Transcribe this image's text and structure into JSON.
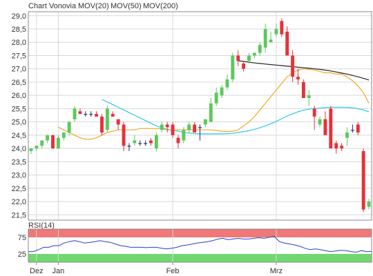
{
  "chart_data": [
    {
      "type": "candlestick",
      "legend": [
        {
          "label": "Chart Vonovia",
          "color": "#e0443c"
        },
        {
          "label": "MOV(20)",
          "color": "#f0a820"
        },
        {
          "label": "MOV(50)",
          "color": "#28c8e8"
        },
        {
          "label": "MOV(200)",
          "color": "#222222"
        }
      ],
      "ylim": [
        21.3,
        29.15
      ],
      "y_ticks": [
        "21,5",
        "22,0",
        "22,5",
        "23,0",
        "23,5",
        "24,0",
        "24,5",
        "25,0",
        "25,5",
        "26,0",
        "26,5",
        "27,0",
        "27,5",
        "28,0",
        "28,5",
        "29,0"
      ],
      "x_ticks": [
        {
          "label": "Dez",
          "index": 1
        },
        {
          "label": "Jan",
          "index": 5
        },
        {
          "label": "Feb",
          "index": 26
        },
        {
          "label": "Mrz",
          "index": 45
        }
      ],
      "up_color": "#5cc85c",
      "down_color": "#e8303a",
      "flat_color": "#2a2a6a",
      "candles": [
        [
          23.9,
          24.0,
          23.8,
          24.0
        ],
        [
          24.0,
          24.1,
          23.9,
          24.1
        ],
        [
          24.1,
          24.3,
          24.0,
          24.3
        ],
        [
          24.3,
          24.5,
          24.2,
          24.5
        ],
        [
          24.5,
          24.5,
          24.0,
          24.0
        ],
        [
          24.0,
          24.5,
          24.0,
          24.4
        ],
        [
          24.4,
          24.6,
          24.3,
          24.6
        ],
        [
          24.6,
          25.0,
          24.5,
          25.0
        ],
        [
          25.1,
          25.6,
          25.0,
          25.5
        ],
        [
          25.4,
          25.5,
          25.3,
          25.3
        ],
        [
          25.3,
          25.4,
          25.2,
          25.3
        ],
        [
          25.3,
          25.4,
          25.2,
          25.3
        ],
        [
          25.3,
          25.4,
          25.2,
          25.2
        ],
        [
          25.2,
          25.3,
          24.5,
          24.6
        ],
        [
          24.7,
          25.6,
          24.6,
          25.5
        ],
        [
          25.3,
          25.4,
          25.2,
          25.2
        ],
        [
          25.1,
          25.1,
          24.7,
          24.9
        ],
        [
          24.9,
          25.0,
          23.9,
          24.1
        ],
        [
          24.1,
          24.2,
          23.9,
          24.1
        ],
        [
          24.2,
          24.5,
          24.1,
          24.3
        ],
        [
          24.2,
          24.3,
          24.1,
          24.2
        ],
        [
          24.2,
          24.3,
          24.1,
          24.2
        ],
        [
          24.3,
          24.4,
          24.1,
          24.2
        ],
        [
          24.0,
          24.6,
          23.9,
          24.5
        ],
        [
          24.7,
          25.0,
          24.6,
          24.9
        ],
        [
          24.9,
          25.0,
          24.6,
          24.8
        ],
        [
          24.9,
          25.0,
          24.4,
          24.5
        ],
        [
          24.4,
          24.5,
          24.0,
          24.2
        ],
        [
          24.3,
          24.8,
          24.2,
          24.7
        ],
        [
          24.7,
          25.0,
          24.6,
          24.9
        ],
        [
          24.9,
          25.0,
          24.6,
          24.6
        ],
        [
          24.8,
          24.9,
          24.3,
          24.8
        ],
        [
          24.9,
          25.1,
          24.8,
          25.1
        ],
        [
          25.0,
          25.9,
          25.0,
          25.7
        ],
        [
          25.7,
          26.3,
          25.6,
          26.1
        ],
        [
          26.0,
          26.4,
          25.9,
          26.3
        ],
        [
          26.3,
          26.8,
          26.2,
          26.6
        ],
        [
          26.6,
          27.6,
          26.5,
          27.5
        ],
        [
          27.5,
          27.7,
          27.1,
          27.3
        ],
        [
          27.2,
          27.3,
          26.9,
          27.0
        ],
        [
          27.3,
          27.6,
          27.2,
          27.5
        ],
        [
          27.5,
          27.6,
          27.4,
          27.6
        ],
        [
          27.6,
          28.0,
          27.5,
          27.9
        ],
        [
          27.8,
          28.7,
          27.6,
          28.5
        ],
        [
          28.0,
          28.4,
          28.0,
          28.1
        ],
        [
          28.3,
          28.7,
          28.2,
          28.5
        ],
        [
          28.8,
          28.9,
          28.2,
          28.3
        ],
        [
          28.4,
          28.6,
          27.5,
          27.5
        ],
        [
          27.5,
          27.7,
          26.5,
          26.7
        ],
        [
          26.7,
          27.0,
          26.4,
          26.6
        ],
        [
          26.5,
          26.6,
          25.9,
          25.9
        ],
        [
          25.9,
          26.2,
          25.6,
          26.0
        ],
        [
          25.5,
          25.6,
          24.7,
          25.2
        ],
        [
          24.9,
          25.2,
          24.8,
          25.1
        ],
        [
          25.1,
          25.4,
          24.5,
          24.5
        ],
        [
          25.5,
          25.6,
          24.0,
          24.0
        ],
        [
          24.2,
          24.3,
          23.8,
          24.0
        ],
        [
          24.1,
          24.2,
          23.9,
          24.0
        ],
        [
          24.4,
          24.8,
          24.1,
          24.6
        ],
        [
          24.7,
          24.9,
          24.6,
          24.7
        ],
        [
          24.9,
          25.0,
          24.5,
          24.6
        ],
        [
          23.9,
          24.0,
          21.6,
          21.7
        ],
        [
          21.8,
          22.1,
          21.7,
          22.0
        ]
      ],
      "mov20": [
        24.8,
        24.7,
        24.6,
        24.5,
        24.4,
        24.35,
        24.35,
        24.4,
        24.5,
        24.6,
        24.65,
        24.7,
        24.7,
        24.7,
        24.7,
        24.75,
        24.75,
        24.75,
        24.75,
        24.75,
        24.7,
        24.7,
        24.7,
        24.7,
        24.7,
        24.7,
        24.7,
        24.7,
        24.7,
        24.68,
        24.65,
        24.64,
        24.65,
        24.7,
        24.85,
        25.0,
        25.2,
        25.45,
        25.7,
        25.95,
        26.2,
        26.45,
        26.7,
        26.85,
        26.95,
        27.0,
        26.98,
        26.95,
        26.9,
        26.85,
        26.85,
        26.8,
        26.8,
        26.7,
        26.55,
        26.35,
        26.1,
        25.7
      ],
      "mov50": [
        25.85,
        25.75,
        25.65,
        25.55,
        25.45,
        25.35,
        25.25,
        25.15,
        25.05,
        24.95,
        24.85,
        24.78,
        24.72,
        24.68,
        24.65,
        24.6,
        24.58,
        24.56,
        24.55,
        24.55,
        24.55,
        24.55,
        24.55,
        24.56,
        24.57,
        24.6,
        24.63,
        24.67,
        24.72,
        24.78,
        24.85,
        24.93,
        25.02,
        25.12,
        25.22,
        25.3,
        25.38,
        25.44,
        25.48,
        25.5,
        25.52,
        25.54,
        25.55,
        25.55,
        25.55,
        25.55,
        25.53,
        25.5,
        25.45,
        25.38
      ],
      "mov200": [
        27.3,
        27.28,
        27.25,
        27.22,
        27.2,
        27.18,
        27.16,
        27.14,
        27.12,
        27.1,
        27.08,
        27.06,
        27.04,
        27.02,
        27.0,
        26.98,
        26.95,
        26.92,
        26.88,
        26.84,
        26.8,
        26.75,
        26.7,
        26.64,
        26.58
      ],
      "rsi": {
        "label": "RSI(14)",
        "ylim": [
          0,
          100
        ],
        "y_ticks": [
          "75",
          "25"
        ],
        "upper_color": "#f07878",
        "lower_color": "#70d870",
        "line_color": "#2a3ad0",
        "values": [
          32,
          32,
          38,
          45,
          45,
          50,
          50,
          58,
          62,
          65,
          62,
          58,
          60,
          62,
          65,
          62,
          60,
          55,
          50,
          48,
          45,
          45,
          45,
          44,
          45,
          45,
          42,
          40,
          42,
          45,
          50,
          52,
          55,
          58,
          60,
          62,
          65,
          70,
          72,
          68,
          70,
          72,
          70,
          70,
          72,
          74,
          72,
          75,
          78,
          62,
          58,
          55,
          52,
          48,
          42,
          38,
          40,
          38,
          35,
          32,
          34,
          36,
          35,
          32,
          30,
          35,
          32,
          33
        ]
      }
    }
  ]
}
